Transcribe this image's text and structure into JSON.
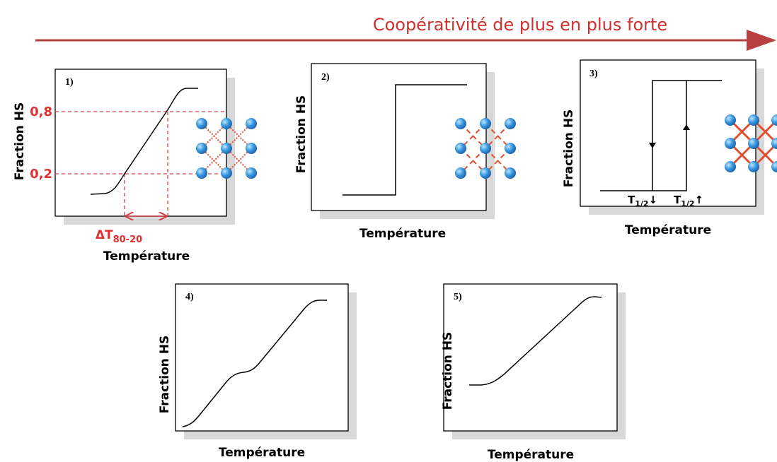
{
  "header": {
    "title": "Coopérativité de plus en plus forte"
  },
  "panels": [
    {
      "label": "1)",
      "y_label": "Fraction HS",
      "x_label": "Température",
      "annotations": {
        "high": "0,8",
        "low": "0,2",
        "delta": "ΔT",
        "delta_sub": "80-20"
      }
    },
    {
      "label": "2)",
      "y_label": "Fraction HS",
      "x_label": "Température"
    },
    {
      "label": "3)",
      "y_label": "Fraction HS",
      "x_label": "Température",
      "annotations": {
        "down": {
          "main": "T",
          "sub": "1/2",
          "arrow": "↓"
        },
        "up": {
          "main": "T",
          "sub": "1/2",
          "arrow": "↑"
        }
      }
    },
    {
      "label": "4)",
      "y_label": "Fraction HS",
      "x_label": "Température"
    },
    {
      "label": "5)",
      "y_label": "Fraction HS",
      "x_label": "Température"
    }
  ]
}
